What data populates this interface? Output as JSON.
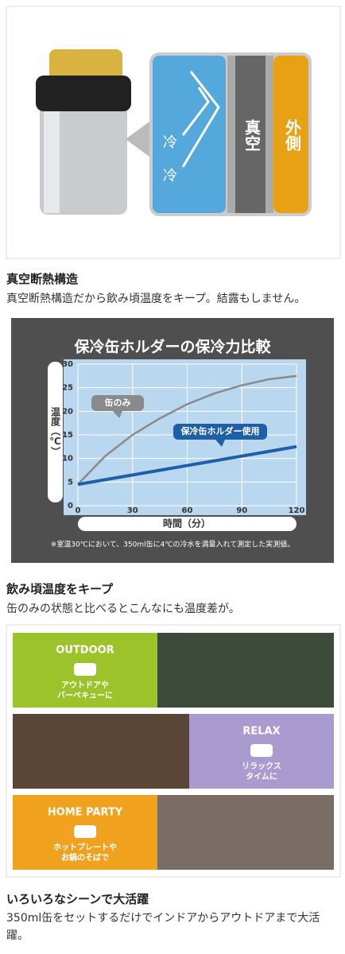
{
  "diagram": {
    "cold_labels": [
      "冷",
      "冷"
    ],
    "vacuum": "真空",
    "outside": "外側"
  },
  "sections": [
    {
      "heading": "真空断熱構造",
      "text": "真空断熱構造だから飲み頃温度をキープ。結露もしません。"
    },
    {
      "heading": "飲み頃温度をキープ",
      "text": "缶のみの状態と比べるとこんなにも温度差が。"
    },
    {
      "heading": "いろいろなシーンで大活躍",
      "text": "350ml缶をセットするだけでインドアからアウトドアまで大活躍。"
    }
  ],
  "chart_data": {
    "type": "line",
    "title": "保冷缶ホルダーの保冷力比較",
    "y_label": "温度（℃）",
    "x_label": "時間（分）",
    "note": "※室温30℃において、350ml缶に4℃の冷水を満量入れて測定した実測値。",
    "x": [
      0,
      15,
      30,
      45,
      60,
      75,
      90,
      105,
      120
    ],
    "series": [
      {
        "name": "缶のみ",
        "color": "#8a8a8a",
        "values": [
          4.5,
          10.5,
          15,
          18.5,
          21.5,
          23.8,
          25.5,
          26.8,
          27.5
        ]
      },
      {
        "name": "保冷缶ホルダー使用",
        "color": "#1e5fa8",
        "values": [
          4.5,
          5.5,
          6.5,
          7.5,
          8.5,
          9.5,
          10.5,
          11.5,
          12.5
        ]
      }
    ],
    "xlim": [
      0,
      120
    ],
    "xticks": [
      0,
      30,
      60,
      90,
      120
    ],
    "ylim": [
      0,
      30
    ],
    "yticks": [
      0,
      5,
      10,
      15,
      20,
      25,
      30
    ],
    "grid": true
  },
  "scenes": [
    {
      "title": "OUTDOOR",
      "caption": [
        "アウトドアや",
        "バーベキューに"
      ],
      "color": "#9cc42a"
    },
    {
      "title": "RELAX",
      "caption": [
        "リラックス",
        "タイムに"
      ],
      "color": "#a99bcf"
    },
    {
      "title": "HOME PARTY",
      "caption": [
        "ホットプレートや",
        "お鍋のそばで"
      ],
      "color": "#f0a21e"
    }
  ]
}
